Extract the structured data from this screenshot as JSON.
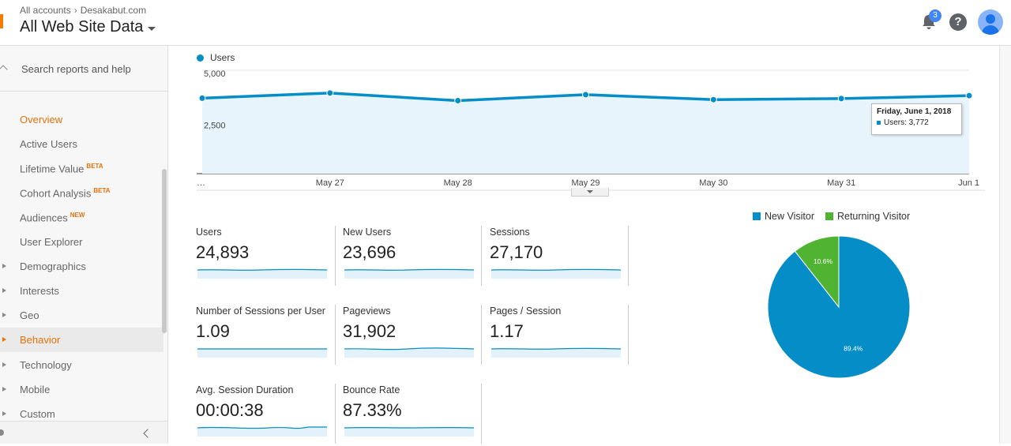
{
  "header": {
    "breadcrumb_root": "All accounts",
    "breadcrumb_account": "Desakabut.com",
    "view_name": "All Web Site Data",
    "notification_count": "3",
    "help_glyph": "?"
  },
  "sidebar": {
    "search_placeholder": "Search reports and help",
    "items": [
      {
        "label": "Overview",
        "badge": ""
      },
      {
        "label": "Active Users",
        "badge": ""
      },
      {
        "label": "Lifetime Value",
        "badge": "BETA"
      },
      {
        "label": "Cohort Analysis",
        "badge": "BETA"
      },
      {
        "label": "Audiences",
        "badge": "NEW"
      },
      {
        "label": "User Explorer",
        "badge": ""
      },
      {
        "label": "Demographics",
        "badge": ""
      },
      {
        "label": "Interests",
        "badge": ""
      },
      {
        "label": "Geo",
        "badge": ""
      },
      {
        "label": "Behavior",
        "badge": ""
      },
      {
        "label": "Technology",
        "badge": ""
      },
      {
        "label": "Mobile",
        "badge": ""
      },
      {
        "label": "Custom",
        "badge": ""
      }
    ]
  },
  "line_chart": {
    "legend_label": "Users",
    "tooltip_title": "Friday, June 1, 2018",
    "tooltip_value": "Users: 3,772"
  },
  "metrics": [
    {
      "label": "Users",
      "value": "24,893"
    },
    {
      "label": "New Users",
      "value": "23,696"
    },
    {
      "label": "Sessions",
      "value": "27,170"
    },
    {
      "label": "Number of Sessions per User",
      "value": "1.09"
    },
    {
      "label": "Pageviews",
      "value": "31,902"
    },
    {
      "label": "Pages / Session",
      "value": "1.17"
    },
    {
      "label": "Avg. Session Duration",
      "value": "00:00:38"
    },
    {
      "label": "Bounce Rate",
      "value": "87.33%"
    }
  ],
  "pie_legend": {
    "new": "New Visitor",
    "returning": "Returning Visitor"
  },
  "colors": {
    "accent_orange": "#e8710a",
    "series_blue": "#058dc7",
    "returning_green": "#50b432"
  },
  "chart_data": [
    {
      "type": "line",
      "x": [
        "…",
        "May 27",
        "May 28",
        "May 29",
        "May 30",
        "May 31",
        "Jun 1"
      ],
      "series": [
        {
          "name": "Users",
          "values": [
            3650,
            3900,
            3530,
            3820,
            3580,
            3630,
            3772
          ]
        }
      ],
      "yticks": [
        "5,000",
        "2,500"
      ],
      "ylim": [
        0,
        5000
      ],
      "grid": true,
      "legend_position": "top-left"
    },
    {
      "type": "pie",
      "categories": [
        "New Visitor",
        "Returning Visitor"
      ],
      "values": [
        89.4,
        10.6
      ],
      "labels": [
        "89.4%",
        "10.6%"
      ],
      "legend_position": "top"
    }
  ]
}
